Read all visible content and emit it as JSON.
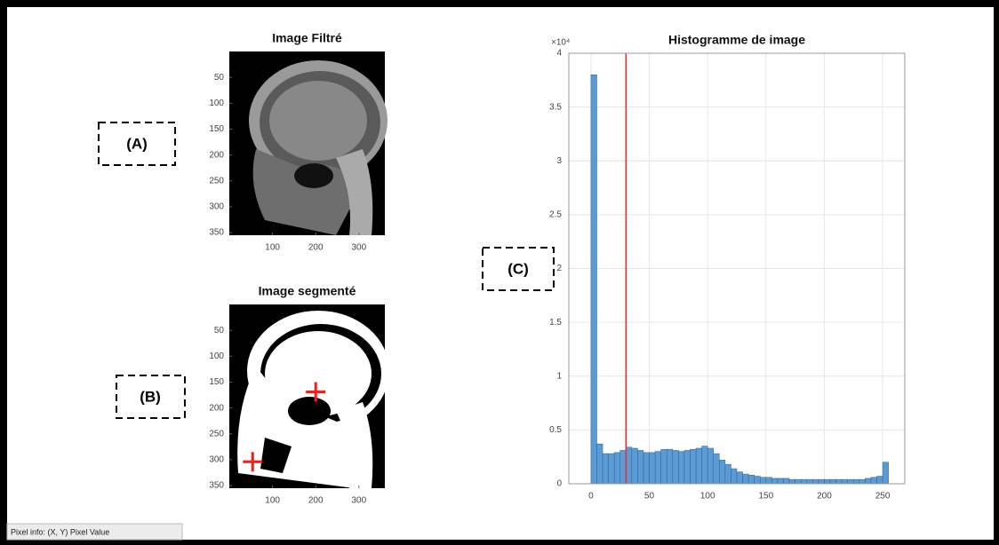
{
  "labels": {
    "a": "(A)",
    "b": "(B)",
    "c": "(C)"
  },
  "images": [
    {
      "title": "Image Filtré",
      "xlim": [
        0,
        360
      ],
      "ylim": [
        0,
        355
      ],
      "xticks": [
        100,
        200,
        300
      ],
      "yticks": [
        50,
        100,
        150,
        200,
        250,
        300,
        350
      ]
    },
    {
      "title": "Image segmenté",
      "xlim": [
        0,
        360
      ],
      "ylim": [
        0,
        355
      ],
      "xticks": [
        100,
        200,
        300
      ],
      "yticks": [
        50,
        100,
        150,
        200,
        250,
        300,
        350
      ],
      "markers": [
        {
          "x": 200,
          "y": 169
        },
        {
          "x": 54,
          "y": 304
        }
      ],
      "marker_color": "#ff1a1a"
    }
  ],
  "chart_data": {
    "type": "histogram",
    "title": "Histogramme de image",
    "y_exponent": "×10⁴",
    "bins": [
      0,
      5,
      10,
      15,
      20,
      25,
      30,
      35,
      40,
      45,
      50,
      55,
      60,
      65,
      70,
      75,
      80,
      85,
      90,
      95,
      100,
      105,
      110,
      115,
      120,
      125,
      130,
      135,
      140,
      145,
      150,
      155,
      160,
      165,
      170,
      175,
      180,
      185,
      190,
      195,
      200,
      205,
      210,
      215,
      220,
      225,
      230,
      235,
      240,
      245,
      250,
      255
    ],
    "values": [
      3.8,
      0.37,
      0.28,
      0.28,
      0.29,
      0.31,
      0.34,
      0.33,
      0.31,
      0.29,
      0.29,
      0.3,
      0.32,
      0.32,
      0.31,
      0.3,
      0.31,
      0.32,
      0.33,
      0.35,
      0.33,
      0.28,
      0.22,
      0.18,
      0.14,
      0.11,
      0.09,
      0.08,
      0.07,
      0.06,
      0.06,
      0.05,
      0.05,
      0.05,
      0.04,
      0.04,
      0.04,
      0.04,
      0.04,
      0.04,
      0.04,
      0.04,
      0.04,
      0.04,
      0.04,
      0.04,
      0.04,
      0.05,
      0.06,
      0.07,
      0.2
    ],
    "color": "#5b9bd5",
    "threshold": 30,
    "threshold_color": "#e8302a",
    "xlim": [
      -19,
      269
    ],
    "ylim": [
      0,
      4
    ],
    "xticks": [
      0,
      50,
      100,
      150,
      200,
      250
    ],
    "yticks": [
      0,
      0.5,
      1,
      1.5,
      2,
      2.5,
      3,
      3.5,
      4
    ],
    "grid": true
  },
  "status_bar": "Pixel info: (X, Y)  Pixel Value"
}
